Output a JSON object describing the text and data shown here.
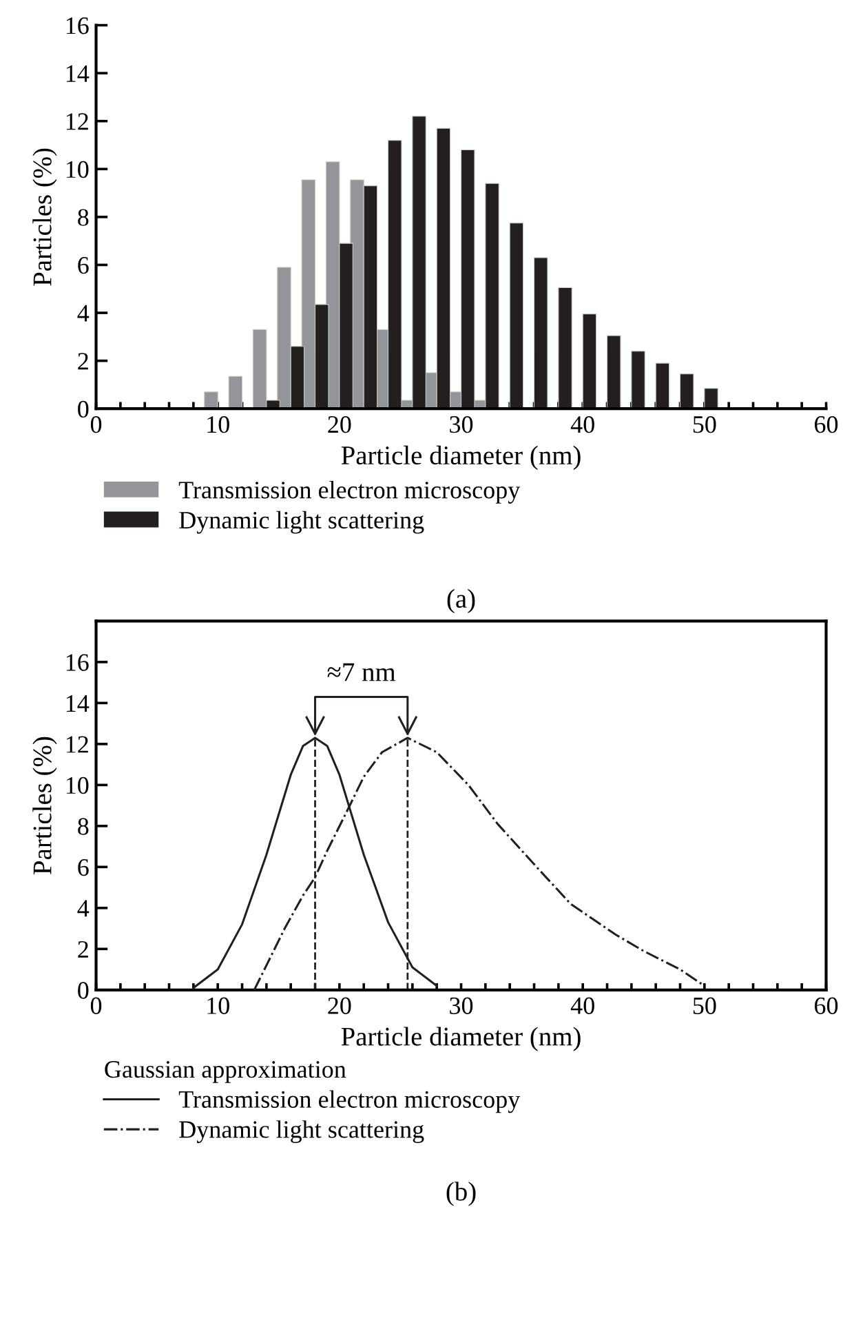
{
  "chart_data": [
    {
      "type": "bar",
      "xlabel": "Particle diameter (nm)",
      "ylabel": "Particles (%)",
      "xlim": [
        0,
        60
      ],
      "ylim": [
        0,
        16
      ],
      "xticks": [
        0,
        {
          "value": 2,
          "label": null
        },
        {
          "value": 4,
          "label": null
        },
        {
          "value": 6,
          "label": null
        },
        {
          "value": 8,
          "label": null
        },
        10,
        {
          "value": 12,
          "label": null
        },
        {
          "value": 14,
          "label": null
        },
        {
          "value": 16,
          "label": null
        },
        {
          "value": 18,
          "label": null
        },
        20,
        {
          "value": 22,
          "label": null
        },
        {
          "value": 24,
          "label": null
        },
        {
          "value": 26,
          "label": null
        },
        {
          "value": 28,
          "label": null
        },
        30,
        {
          "value": 32,
          "label": null
        },
        {
          "value": 34,
          "label": null
        },
        {
          "value": 36,
          "label": null
        },
        {
          "value": 38,
          "label": null
        },
        40,
        {
          "value": 42,
          "label": null
        },
        {
          "value": 44,
          "label": null
        },
        {
          "value": 46,
          "label": null
        },
        {
          "value": 48,
          "label": null
        },
        50,
        {
          "value": 52,
          "label": null
        },
        {
          "value": 54,
          "label": null
        },
        {
          "value": 56,
          "label": null
        },
        {
          "value": 58,
          "label": null
        },
        60
      ],
      "yticks": [
        0,
        2,
        4,
        6,
        8,
        10,
        12,
        14,
        16
      ],
      "legend": "bottom",
      "annotations": [
        "(a)"
      ],
      "series": [
        {
          "name": "Transmission electron microscopy",
          "color": "#939598",
          "x": [
            10,
            12,
            14,
            16,
            18,
            20,
            22,
            24,
            26,
            28,
            30,
            32
          ],
          "values": [
            0.7,
            1.35,
            3.3,
            5.9,
            9.55,
            10.3,
            9.55,
            3.3,
            0.35,
            1.5,
            0.7,
            0.35
          ]
        },
        {
          "name": "Dynamic light scattering",
          "color": "#231f20",
          "x": [
            14,
            16,
            18,
            20,
            22,
            24,
            26,
            28,
            30,
            32,
            34,
            36,
            38,
            40,
            42,
            44,
            46,
            48,
            50
          ],
          "values": [
            0.35,
            2.6,
            4.35,
            6.9,
            9.3,
            11.2,
            12.2,
            11.7,
            10.8,
            9.4,
            7.75,
            6.3,
            5.05,
            3.95,
            3.05,
            2.4,
            1.9,
            1.45,
            0.85
          ]
        }
      ]
    },
    {
      "type": "line",
      "xlabel": "Particle diameter (nm)",
      "ylabel": "Particles (%)",
      "xlim": [
        0,
        60
      ],
      "ylim": [
        0,
        18
      ],
      "xticks": [
        0,
        {
          "value": 2,
          "label": null
        },
        {
          "value": 4,
          "label": null
        },
        {
          "value": 6,
          "label": null
        },
        {
          "value": 8,
          "label": null
        },
        10,
        {
          "value": 12,
          "label": null
        },
        {
          "value": 14,
          "label": null
        },
        {
          "value": 16,
          "label": null
        },
        {
          "value": 18,
          "label": null
        },
        20,
        {
          "value": 22,
          "label": null
        },
        {
          "value": 24,
          "label": null
        },
        {
          "value": 26,
          "label": null
        },
        {
          "value": 28,
          "label": null
        },
        30,
        {
          "value": 32,
          "label": null
        },
        {
          "value": 34,
          "label": null
        },
        {
          "value": 36,
          "label": null
        },
        {
          "value": 38,
          "label": null
        },
        40,
        {
          "value": 42,
          "label": null
        },
        {
          "value": 44,
          "label": null
        },
        {
          "value": 46,
          "label": null
        },
        {
          "value": 48,
          "label": null
        },
        50,
        {
          "value": 52,
          "label": null
        },
        {
          "value": 54,
          "label": null
        },
        {
          "value": 56,
          "label": null
        },
        {
          "value": 58,
          "label": null
        },
        60
      ],
      "yticks": [
        0,
        2,
        4,
        6,
        8,
        10,
        12,
        14,
        16
      ],
      "legend": "bottom",
      "legend_title": "Gaussian approximation",
      "ref_lines": [
        {
          "axis": "x",
          "value": 18,
          "line_style": "dashed",
          "color": "#231f20"
        },
        {
          "axis": "x",
          "value": 25.6,
          "line_style": "dashed",
          "color": "#231f20"
        }
      ],
      "annotations": [
        "≈7 nm",
        "(b)"
      ],
      "series": [
        {
          "name": "Transmission electron microscopy",
          "color": "#231f20",
          "line_style": "solid",
          "x": [
            8,
            10,
            12,
            14,
            16,
            17,
            18,
            19,
            20,
            22,
            24,
            26,
            28
          ],
          "values": [
            0.1,
            1.0,
            3.2,
            6.6,
            10.5,
            11.9,
            12.3,
            11.9,
            10.5,
            6.6,
            3.3,
            1.1,
            0.2
          ]
        },
        {
          "name": "Dynamic light scattering",
          "color": "#231f20",
          "line_style": "dashdot",
          "x": [
            13,
            14,
            15.5,
            17,
            18,
            19,
            20.6,
            22,
            23.5,
            25.6,
            28,
            30.6,
            33,
            36.2,
            39,
            42.7,
            45,
            48,
            50
          ],
          "values": [
            0,
            1.2,
            3.0,
            4.6,
            5.5,
            6.8,
            8.7,
            10.4,
            11.6,
            12.3,
            11.6,
            10.0,
            8.1,
            6.0,
            4.2,
            2.7,
            1.9,
            1.0,
            0.2
          ]
        }
      ]
    }
  ]
}
